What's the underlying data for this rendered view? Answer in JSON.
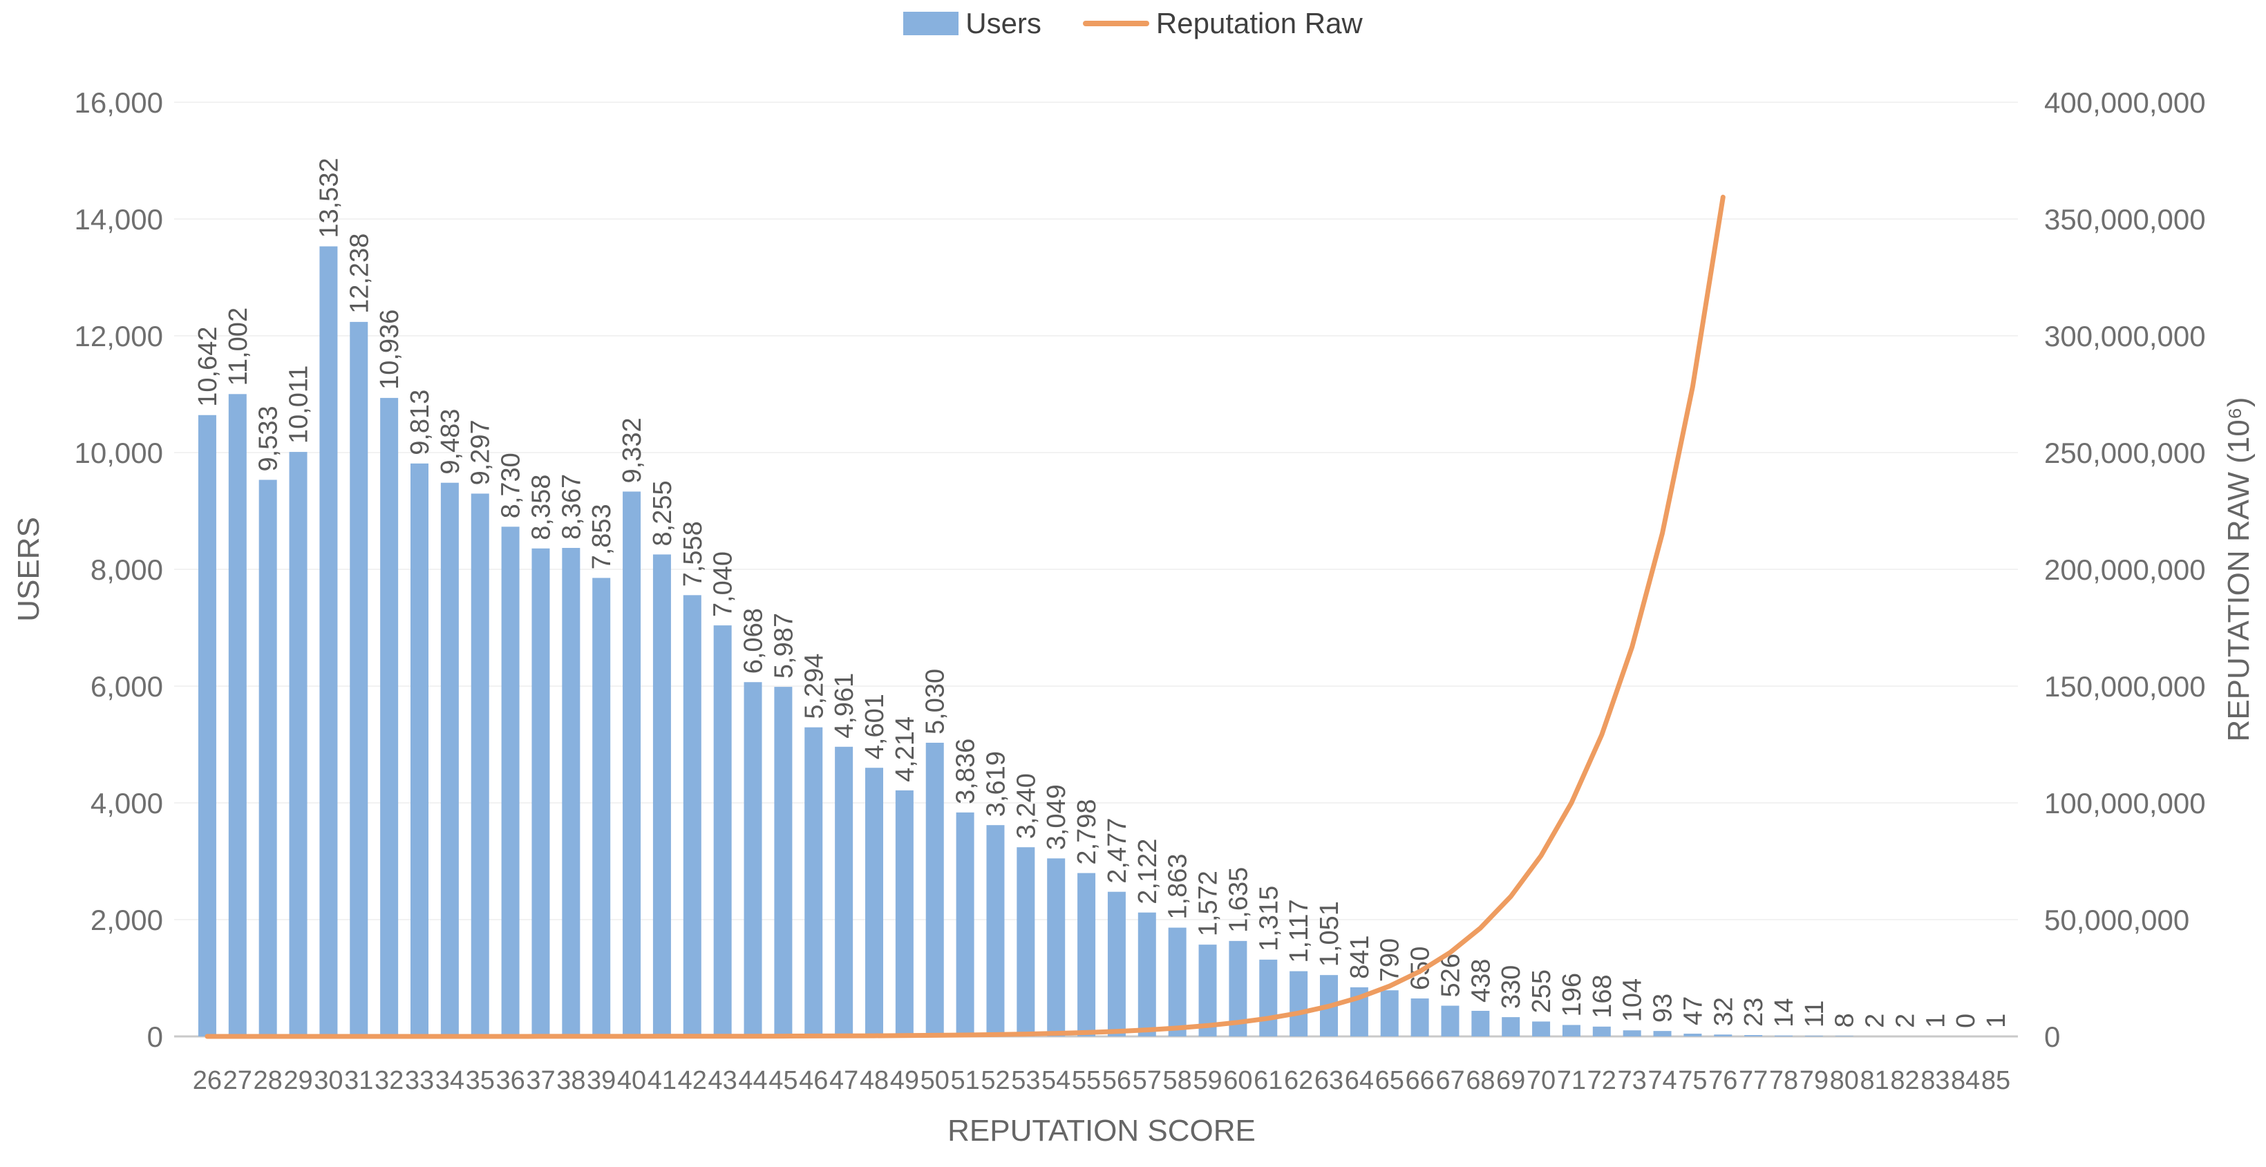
{
  "chart_data": {
    "type": "bar+line",
    "title": "",
    "xlabel": "REPUTATION SCORE",
    "ylabel_left": "USERS",
    "ylabel_right": "REPUTATION RAW (10⁶)",
    "ylim_left": [
      0,
      16000
    ],
    "ytick_step_left": 2000,
    "ylim_right": [
      0,
      400000000
    ],
    "ytick_step_right": 50000000,
    "grid": true,
    "legend_position": "top-center",
    "colors": {
      "bar": "#88B1DE",
      "line": "#EE9C60",
      "gridline": "#F2F2F2",
      "axis_line": "#C9C9C9",
      "tick_label": "#6F6F6F",
      "bar_label": "#5A5A5A"
    },
    "categories": [
      26,
      27,
      28,
      29,
      30,
      31,
      32,
      33,
      34,
      35,
      36,
      37,
      38,
      39,
      40,
      41,
      42,
      43,
      44,
      45,
      46,
      47,
      48,
      49,
      50,
      51,
      52,
      53,
      54,
      55,
      56,
      57,
      58,
      59,
      60,
      61,
      62,
      63,
      64,
      65,
      66,
      67,
      68,
      69,
      70,
      71,
      72,
      73,
      74,
      75,
      76,
      77,
      78,
      79,
      80,
      81,
      82,
      83,
      84,
      85
    ],
    "series": [
      {
        "name": "Users",
        "type": "bar",
        "axis": "left",
        "color": "#88B1DE",
        "values": [
          10642,
          11002,
          9533,
          10011,
          13532,
          12238,
          10936,
          9813,
          9483,
          9297,
          8730,
          8358,
          8367,
          7853,
          9332,
          8255,
          7558,
          7040,
          6068,
          5987,
          5294,
          4961,
          4601,
          4214,
          5030,
          3836,
          3619,
          3240,
          3049,
          2798,
          2477,
          2122,
          1863,
          1572,
          1635,
          1315,
          1117,
          1051,
          841,
          790,
          650,
          526,
          438,
          330,
          255,
          196,
          168,
          104,
          93,
          47,
          32,
          23,
          14,
          11,
          8,
          2,
          2,
          1,
          0,
          1
        ]
      },
      {
        "name": "Reputation Raw",
        "type": "line",
        "axis": "right",
        "color": "#EE9C60",
        "x": [
          26,
          27,
          28,
          29,
          30,
          31,
          32,
          33,
          34,
          35,
          36,
          37,
          38,
          39,
          40,
          41,
          42,
          43,
          44,
          45,
          46,
          47,
          48,
          49,
          50,
          51,
          52,
          53,
          54,
          55,
          56,
          57,
          58,
          59,
          60,
          61,
          62,
          63,
          64,
          65,
          66,
          67,
          68,
          69,
          70,
          71,
          72,
          73,
          74,
          75,
          76
        ],
        "values": [
          1000,
          1292,
          1668,
          2154,
          2783,
          3594,
          4642,
          5995,
          7743,
          10000,
          12915,
          16681,
          21544,
          27826,
          35938,
          46416,
          59948,
          77426,
          100000,
          129155,
          166810,
          215443,
          278256,
          359381,
          464159,
          599484,
          774264,
          1000000,
          1291550,
          1668101,
          2154435,
          2782559,
          3593814,
          4641589,
          5994843,
          7742637,
          10000000,
          12915497,
          16681005,
          21544347,
          27825594,
          35938137,
          46415888,
          59948425,
          77426368,
          100000000,
          129154967,
          166810054,
          215443469,
          278255940,
          359381366
        ]
      }
    ]
  }
}
